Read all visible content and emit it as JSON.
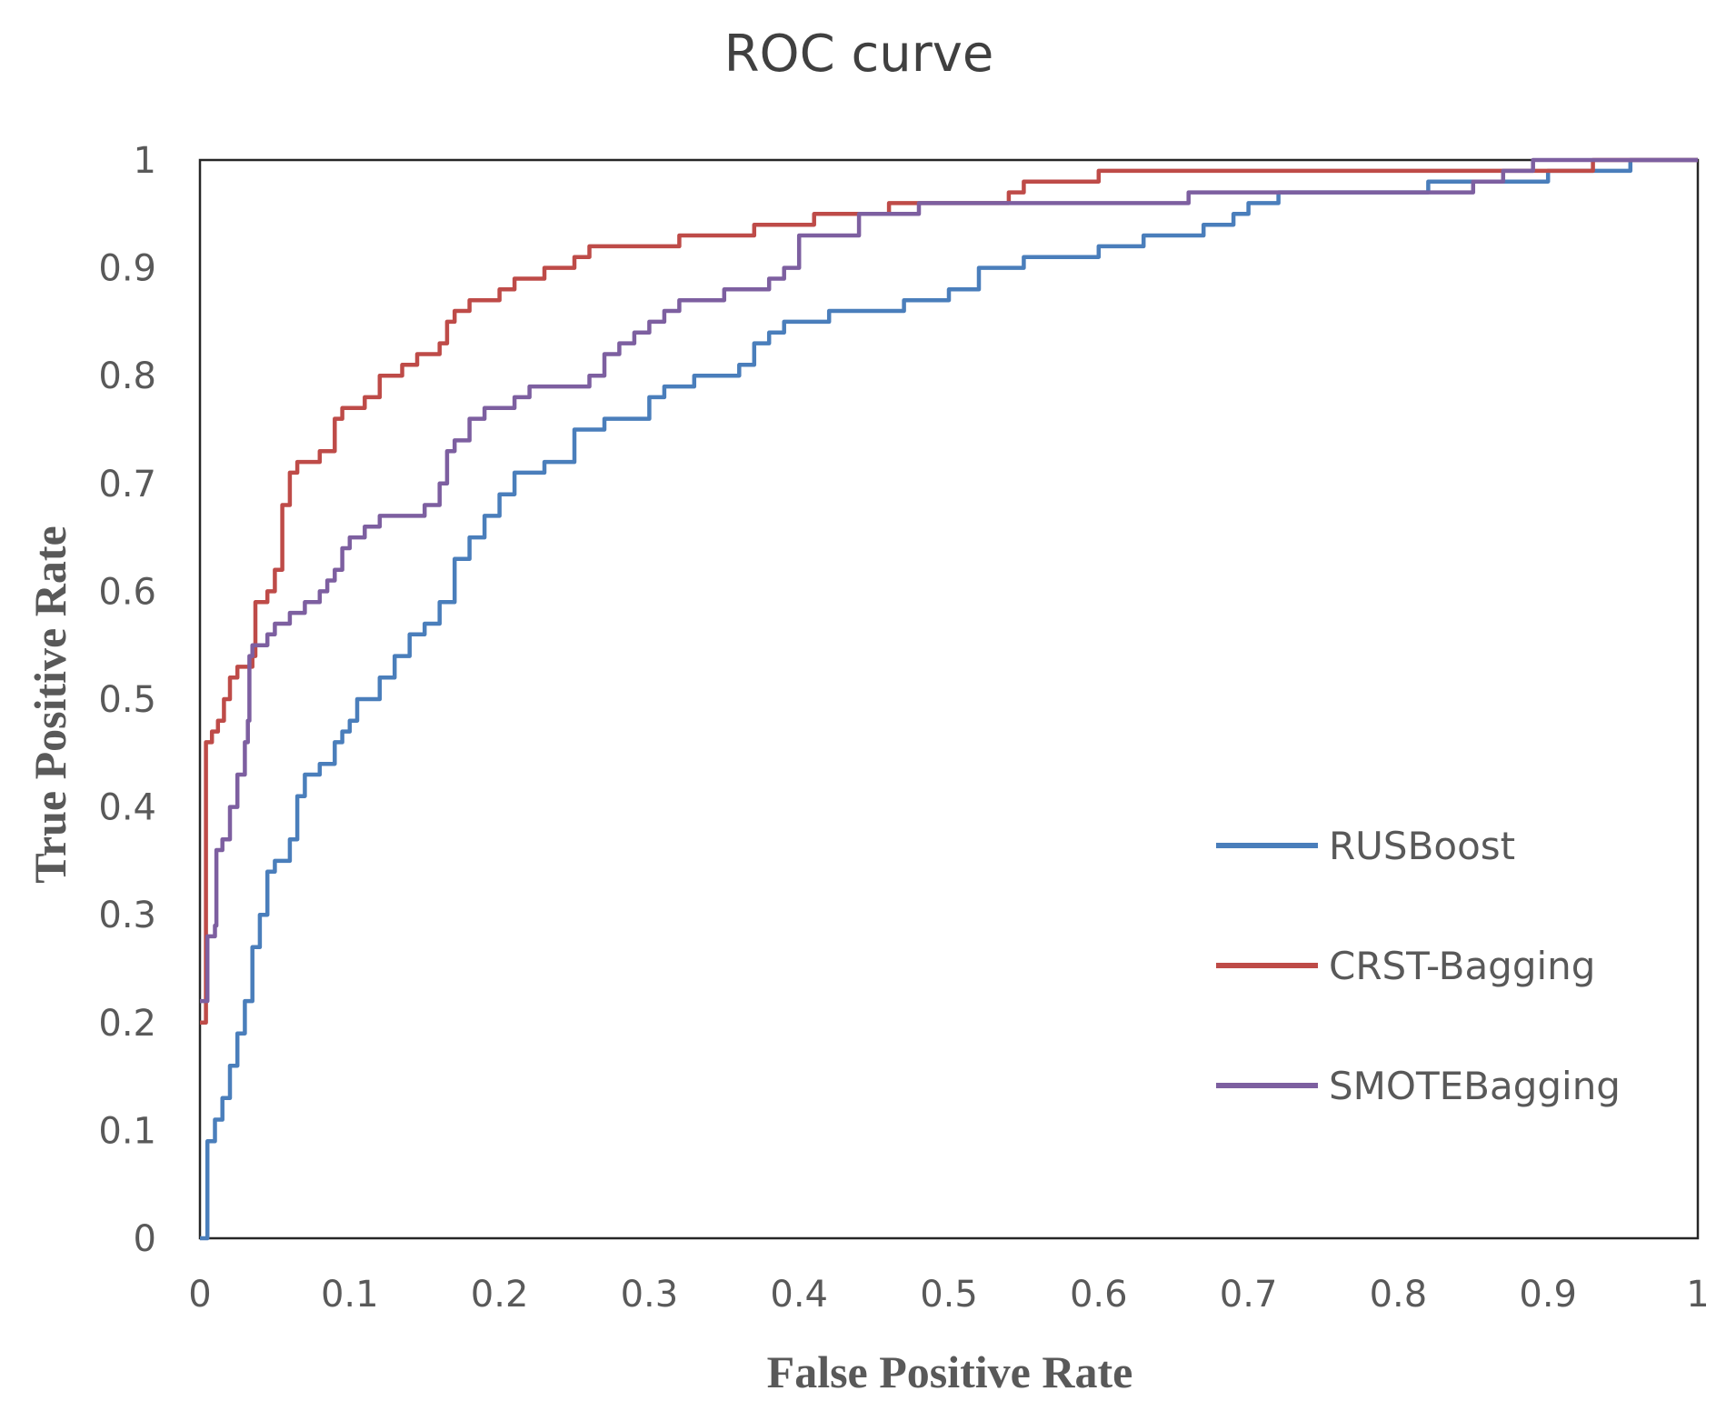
{
  "chart_data": {
    "type": "line",
    "title": "ROC curve",
    "xlabel": "False Positive Rate",
    "ylabel": "True Positive Rate",
    "xlim": [
      0,
      1
    ],
    "ylim": [
      0,
      1
    ],
    "x_ticks": [
      "0",
      "0.1",
      "0.2",
      "0.3",
      "0.4",
      "0.5",
      "0.6",
      "0.7",
      "0.8",
      "0.9",
      "1"
    ],
    "y_ticks": [
      "0",
      "0.1",
      "0.2",
      "0.3",
      "0.4",
      "0.5",
      "0.6",
      "0.7",
      "0.8",
      "0.9",
      "1"
    ],
    "grid": false,
    "legend_position": "right",
    "series": [
      {
        "name": "RUSBoost",
        "color": "#4a7ebb",
        "points": [
          [
            0,
            0
          ],
          [
            0.005,
            0.09
          ],
          [
            0.01,
            0.11
          ],
          [
            0.015,
            0.13
          ],
          [
            0.02,
            0.16
          ],
          [
            0.025,
            0.19
          ],
          [
            0.03,
            0.22
          ],
          [
            0.035,
            0.27
          ],
          [
            0.04,
            0.3
          ],
          [
            0.045,
            0.34
          ],
          [
            0.05,
            0.35
          ],
          [
            0.06,
            0.37
          ],
          [
            0.065,
            0.41
          ],
          [
            0.07,
            0.43
          ],
          [
            0.08,
            0.44
          ],
          [
            0.09,
            0.46
          ],
          [
            0.095,
            0.47
          ],
          [
            0.1,
            0.48
          ],
          [
            0.105,
            0.5
          ],
          [
            0.12,
            0.52
          ],
          [
            0.13,
            0.54
          ],
          [
            0.14,
            0.56
          ],
          [
            0.15,
            0.57
          ],
          [
            0.16,
            0.59
          ],
          [
            0.17,
            0.63
          ],
          [
            0.18,
            0.65
          ],
          [
            0.19,
            0.67
          ],
          [
            0.2,
            0.69
          ],
          [
            0.21,
            0.71
          ],
          [
            0.23,
            0.72
          ],
          [
            0.25,
            0.75
          ],
          [
            0.27,
            0.76
          ],
          [
            0.3,
            0.78
          ],
          [
            0.31,
            0.79
          ],
          [
            0.33,
            0.8
          ],
          [
            0.36,
            0.81
          ],
          [
            0.37,
            0.83
          ],
          [
            0.38,
            0.84
          ],
          [
            0.39,
            0.85
          ],
          [
            0.42,
            0.86
          ],
          [
            0.47,
            0.87
          ],
          [
            0.5,
            0.88
          ],
          [
            0.52,
            0.9
          ],
          [
            0.55,
            0.91
          ],
          [
            0.6,
            0.92
          ],
          [
            0.63,
            0.93
          ],
          [
            0.67,
            0.94
          ],
          [
            0.69,
            0.95
          ],
          [
            0.7,
            0.96
          ],
          [
            0.72,
            0.97
          ],
          [
            0.78,
            0.97
          ],
          [
            0.82,
            0.98
          ],
          [
            0.85,
            0.98
          ],
          [
            0.9,
            0.99
          ],
          [
            0.95,
            0.99
          ],
          [
            0.955,
            1.0
          ],
          [
            1.0,
            1.0
          ]
        ]
      },
      {
        "name": "CRST-Bagging",
        "color": "#be4b48",
        "points": [
          [
            0,
            0.2
          ],
          [
            0.003,
            0.2
          ],
          [
            0.004,
            0.46
          ],
          [
            0.008,
            0.47
          ],
          [
            0.012,
            0.48
          ],
          [
            0.016,
            0.5
          ],
          [
            0.02,
            0.52
          ],
          [
            0.025,
            0.53
          ],
          [
            0.035,
            0.54
          ],
          [
            0.037,
            0.59
          ],
          [
            0.045,
            0.6
          ],
          [
            0.05,
            0.62
          ],
          [
            0.055,
            0.68
          ],
          [
            0.06,
            0.71
          ],
          [
            0.065,
            0.72
          ],
          [
            0.08,
            0.73
          ],
          [
            0.09,
            0.76
          ],
          [
            0.095,
            0.77
          ],
          [
            0.11,
            0.78
          ],
          [
            0.12,
            0.8
          ],
          [
            0.135,
            0.81
          ],
          [
            0.145,
            0.82
          ],
          [
            0.16,
            0.83
          ],
          [
            0.165,
            0.85
          ],
          [
            0.17,
            0.86
          ],
          [
            0.18,
            0.87
          ],
          [
            0.2,
            0.88
          ],
          [
            0.21,
            0.89
          ],
          [
            0.23,
            0.9
          ],
          [
            0.25,
            0.91
          ],
          [
            0.26,
            0.92
          ],
          [
            0.3,
            0.92
          ],
          [
            0.32,
            0.93
          ],
          [
            0.36,
            0.93
          ],
          [
            0.37,
            0.94
          ],
          [
            0.4,
            0.94
          ],
          [
            0.41,
            0.95
          ],
          [
            0.44,
            0.95
          ],
          [
            0.46,
            0.96
          ],
          [
            0.5,
            0.96
          ],
          [
            0.54,
            0.97
          ],
          [
            0.55,
            0.98
          ],
          [
            0.6,
            0.99
          ],
          [
            0.65,
            0.99
          ],
          [
            0.75,
            0.99
          ],
          [
            0.85,
            0.99
          ],
          [
            0.9,
            0.99
          ],
          [
            0.93,
            1.0
          ],
          [
            1.0,
            1.0
          ]
        ]
      },
      {
        "name": "SMOTEBagging",
        "color": "#7d5fa0",
        "points": [
          [
            0,
            0.22
          ],
          [
            0.004,
            0.22
          ],
          [
            0.005,
            0.28
          ],
          [
            0.01,
            0.29
          ],
          [
            0.011,
            0.36
          ],
          [
            0.015,
            0.37
          ],
          [
            0.02,
            0.4
          ],
          [
            0.025,
            0.43
          ],
          [
            0.03,
            0.46
          ],
          [
            0.032,
            0.48
          ],
          [
            0.033,
            0.54
          ],
          [
            0.035,
            0.55
          ],
          [
            0.045,
            0.56
          ],
          [
            0.05,
            0.57
          ],
          [
            0.06,
            0.58
          ],
          [
            0.07,
            0.59
          ],
          [
            0.08,
            0.6
          ],
          [
            0.085,
            0.61
          ],
          [
            0.09,
            0.62
          ],
          [
            0.095,
            0.64
          ],
          [
            0.1,
            0.65
          ],
          [
            0.11,
            0.66
          ],
          [
            0.12,
            0.67
          ],
          [
            0.15,
            0.68
          ],
          [
            0.16,
            0.7
          ],
          [
            0.165,
            0.73
          ],
          [
            0.17,
            0.74
          ],
          [
            0.18,
            0.76
          ],
          [
            0.19,
            0.77
          ],
          [
            0.21,
            0.78
          ],
          [
            0.22,
            0.79
          ],
          [
            0.25,
            0.79
          ],
          [
            0.26,
            0.8
          ],
          [
            0.27,
            0.82
          ],
          [
            0.28,
            0.83
          ],
          [
            0.29,
            0.84
          ],
          [
            0.3,
            0.85
          ],
          [
            0.31,
            0.86
          ],
          [
            0.32,
            0.87
          ],
          [
            0.35,
            0.88
          ],
          [
            0.38,
            0.89
          ],
          [
            0.39,
            0.9
          ],
          [
            0.4,
            0.93
          ],
          [
            0.42,
            0.93
          ],
          [
            0.44,
            0.95
          ],
          [
            0.48,
            0.96
          ],
          [
            0.55,
            0.96
          ],
          [
            0.65,
            0.96
          ],
          [
            0.66,
            0.97
          ],
          [
            0.7,
            0.97
          ],
          [
            0.75,
            0.97
          ],
          [
            0.8,
            0.97
          ],
          [
            0.85,
            0.98
          ],
          [
            0.87,
            0.99
          ],
          [
            0.89,
            1.0
          ],
          [
            1.0,
            1.0
          ]
        ]
      }
    ]
  }
}
